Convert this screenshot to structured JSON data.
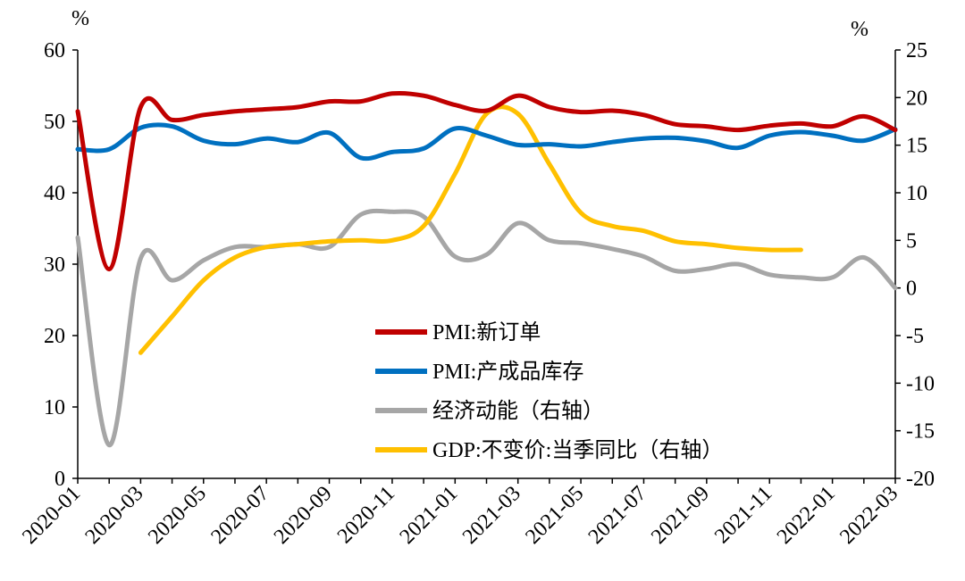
{
  "chart_data": {
    "type": "line",
    "y_left_unit": "%",
    "y_right_unit": "%",
    "y_left_ticks": [
      "0",
      "10",
      "20",
      "30",
      "40",
      "50",
      "60"
    ],
    "y_right_ticks": [
      "-20",
      "-15",
      "-10",
      "-5",
      "0",
      "5",
      "10",
      "15",
      "20",
      "25"
    ],
    "ylim_left": [
      0,
      60
    ],
    "ylim_right": [
      -20,
      25
    ],
    "x_tick_labels": [
      "2020-01",
      "2020-03",
      "2020-05",
      "2020-07",
      "2020-09",
      "2020-11",
      "2021-01",
      "2021-03",
      "2021-05",
      "2021-07",
      "2021-09",
      "2021-11",
      "2022-01",
      "2022-03"
    ],
    "x": [
      "2020-01",
      "2020-02",
      "2020-03",
      "2020-04",
      "2020-05",
      "2020-06",
      "2020-07",
      "2020-08",
      "2020-09",
      "2020-10",
      "2020-11",
      "2020-12",
      "2021-01",
      "2021-02",
      "2021-03",
      "2021-04",
      "2021-05",
      "2021-06",
      "2021-07",
      "2021-08",
      "2021-09",
      "2021-10",
      "2021-11",
      "2021-12",
      "2022-01",
      "2022-02",
      "2022-03"
    ],
    "legend_position": "center",
    "grid": false,
    "series": [
      {
        "name": "PMI:新订单",
        "axis": "left",
        "color": "#C00000",
        "values": [
          51.4,
          29.3,
          52.0,
          50.2,
          50.9,
          51.4,
          51.7,
          52.0,
          52.8,
          52.8,
          53.9,
          53.6,
          52.3,
          51.5,
          53.6,
          52.0,
          51.3,
          51.5,
          50.9,
          49.6,
          49.3,
          48.8,
          49.4,
          49.7,
          49.3,
          50.7,
          48.8
        ]
      },
      {
        "name": "PMI:产成品库存",
        "axis": "left",
        "color": "#0070C0",
        "values": [
          46.1,
          46.1,
          49.1,
          49.3,
          47.3,
          46.8,
          47.6,
          47.1,
          48.4,
          44.9,
          45.7,
          46.2,
          49.0,
          48.0,
          46.7,
          46.8,
          46.5,
          47.1,
          47.6,
          47.7,
          47.2,
          46.3,
          48.0,
          48.5,
          48.0,
          47.3,
          48.9
        ]
      },
      {
        "name": "经济动能（右轴）",
        "axis": "right",
        "color": "#A6A6A6",
        "values": [
          5.3,
          -16.5,
          3.1,
          0.8,
          2.9,
          4.3,
          4.3,
          4.6,
          4.3,
          7.7,
          8.0,
          7.5,
          3.3,
          3.5,
          6.8,
          5.0,
          4.7,
          4.1,
          3.3,
          1.8,
          2.0,
          2.5,
          1.4,
          1.1,
          1.1,
          3.2,
          0.0
        ]
      },
      {
        "name": "GDP:不变价:当季同比（右轴）",
        "axis": "right",
        "color": "#FFC000",
        "values": [
          null,
          null,
          -6.8,
          -3.0,
          0.8,
          3.2,
          4.3,
          4.6,
          4.9,
          5.0,
          5.0,
          6.5,
          12.0,
          18.3,
          18.3,
          13.0,
          7.9,
          6.5,
          6.0,
          4.9,
          4.6,
          4.2,
          4.0,
          4.0,
          null,
          null,
          null
        ]
      }
    ]
  }
}
